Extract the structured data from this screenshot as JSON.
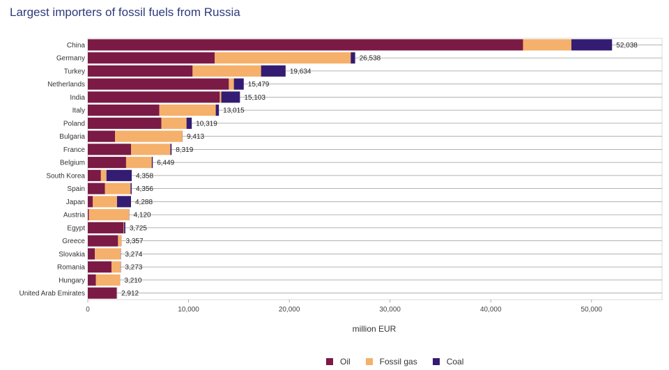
{
  "title": "Largest importers of fossil fuels from Russia",
  "colors": {
    "oil": "#7a1a45",
    "gas": "#f5b06b",
    "coal": "#341c72"
  },
  "legend": [
    {
      "name": "Oil",
      "color": "#7a1a45"
    },
    {
      "name": "Fossil gas",
      "color": "#f5b06b"
    },
    {
      "name": "Coal",
      "color": "#341c72"
    }
  ],
  "chart_data": {
    "type": "bar",
    "orientation": "horizontal",
    "stacked": true,
    "title": "Largest importers of fossil fuels from Russia",
    "xlabel": "million EUR",
    "ylabel": "",
    "xlim": [
      0,
      57000
    ],
    "xticks": [
      0,
      10000,
      20000,
      30000,
      40000,
      50000
    ],
    "xtick_labels": [
      "0",
      "10,000",
      "20,000",
      "30,000",
      "40,000",
      "50,000"
    ],
    "legend_position": "bottom",
    "grid": "horizontal lines",
    "categories": [
      "China",
      "Germany",
      "Turkey",
      "Netherlands",
      "India",
      "Italy",
      "Poland",
      "Bulgaria",
      "France",
      "Belgium",
      "South Korea",
      "Spain",
      "Japan",
      "Austria",
      "Egypt",
      "Greece",
      "Slovakia",
      "Romania",
      "Hungary",
      "United Arab Emirates"
    ],
    "series": [
      {
        "name": "Oil",
        "values": [
          43200,
          12600,
          10400,
          14000,
          13100,
          7100,
          7300,
          2700,
          4300,
          3800,
          1300,
          1700,
          500,
          100,
          3550,
          3000,
          700,
          2350,
          800,
          2850
        ]
      },
      {
        "name": "Fossil gas",
        "values": [
          4800,
          13500,
          6800,
          500,
          150,
          5600,
          2500,
          6700,
          3900,
          2550,
          550,
          2550,
          2400,
          4000,
          50,
          350,
          2550,
          900,
          2400,
          30
        ]
      },
      {
        "name": "Coal",
        "values": [
          4038,
          438,
          2434,
          979,
          1853,
          315,
          519,
          13,
          119,
          99,
          2508,
          106,
          1388,
          20,
          125,
          7,
          24,
          23,
          10,
          32
        ]
      }
    ],
    "totals": [
      52038,
      26538,
      19634,
      15479,
      15103,
      13015,
      10319,
      9413,
      8319,
      6449,
      4358,
      4356,
      4288,
      4120,
      3725,
      3357,
      3274,
      3273,
      3210,
      2912
    ],
    "total_labels": [
      "52,038",
      "26,538",
      "19,634",
      "15,479",
      "15,103",
      "13,015",
      "10,319",
      "9,413",
      "8,319",
      "6,449",
      "4,358",
      "4,356",
      "4,288",
      "4,120",
      "3,725",
      "3,357",
      "3,274",
      "3,273",
      "3,210",
      "2,912"
    ]
  }
}
